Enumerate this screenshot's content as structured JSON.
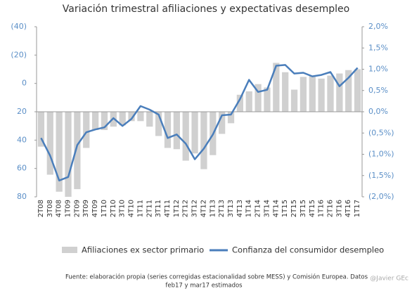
{
  "chart_data": {
    "type": "bar_line",
    "title": "Variación trimestral afiliaciones y expectativas desempleo",
    "categories": [
      "2T08",
      "3T08",
      "4T08",
      "1T09",
      "2T09",
      "3T09",
      "4T09",
      "1T10",
      "2T10",
      "3T10",
      "4T10",
      "1T11",
      "2T11",
      "3T11",
      "4T11",
      "1T12",
      "2T12",
      "3T12",
      "4T12",
      "1T13",
      "2T13",
      "3T13",
      "4T13",
      "1T14",
      "2T14",
      "3T14",
      "4T14",
      "1T15",
      "2T15",
      "3T15",
      "4T15",
      "1T16",
      "2T16",
      "3T16",
      "4T16",
      "1T17"
    ],
    "series": [
      {
        "name": "Afiliaciones ex sector primario",
        "type": "bar",
        "axis": "y2",
        "color": "#d0d0d0",
        "values": [
          -0.82,
          -1.48,
          -1.88,
          -2.0,
          -1.82,
          -0.85,
          -0.43,
          -0.43,
          -0.35,
          -0.32,
          -0.22,
          -0.22,
          -0.35,
          -0.57,
          -0.85,
          -0.88,
          -1.15,
          -0.98,
          -1.35,
          -1.02,
          -0.52,
          -0.27,
          0.4,
          0.48,
          0.65,
          0.57,
          1.15,
          0.93,
          0.52,
          0.82,
          0.85,
          0.78,
          0.85,
          0.9,
          0.98,
          1.0
        ]
      },
      {
        "name": "Confianza del consumidor desempleo",
        "type": "line",
        "axis": "y",
        "color": "#4a7ebb",
        "values": [
          38.5,
          51,
          68.5,
          66,
          43.5,
          34.5,
          32.5,
          31,
          24.5,
          30,
          25,
          16,
          18.5,
          22,
          38.5,
          36,
          42.5,
          53.5,
          46,
          36,
          22.5,
          22,
          11,
          -2.5,
          6,
          4.5,
          -12.5,
          -13,
          -7,
          -7.5,
          -5,
          -6,
          -8,
          2,
          -4,
          -11
        ]
      }
    ],
    "ylim": [
      80,
      -40
    ],
    "yticks": [
      {
        "value": -40,
        "label": "(40)"
      },
      {
        "value": -20,
        "label": "(20)"
      },
      0,
      20,
      40,
      60,
      80
    ],
    "y2lim": [
      -2.0,
      2.0
    ],
    "y2ticks": [
      {
        "value": 2.0,
        "label": "2,0%"
      },
      {
        "value": 1.5,
        "label": "1,5%"
      },
      {
        "value": 1.0,
        "label": "1,0%"
      },
      {
        "value": 0.5,
        "label": "0,5%"
      },
      {
        "value": 0.0,
        "label": "0,0%"
      },
      {
        "value": -0.5,
        "label": "(0,5%)"
      },
      {
        "value": -1.0,
        "label": "(1,0%)"
      },
      {
        "value": -1.5,
        "label": "(1,5%)"
      },
      {
        "value": -2.0,
        "label": "(2,0%)"
      }
    ],
    "source": [
      "Fuente: elaboración propia (series corregidas estacionalidad sobre MESS) y Comisión Europea. Datos",
      "feb17 y mar17 estimados"
    ],
    "watermark": "@Javier GEc"
  }
}
